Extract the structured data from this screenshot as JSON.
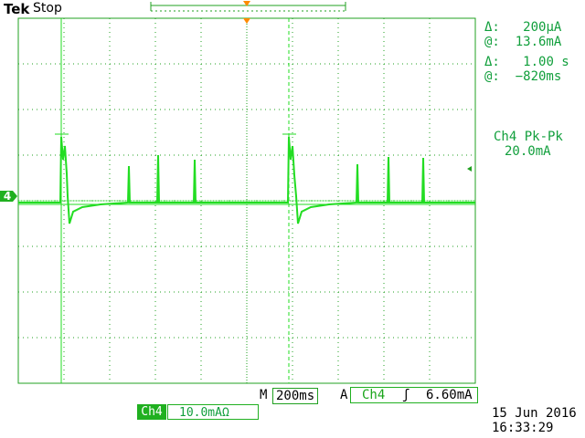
{
  "header": {
    "brand": "Tek",
    "run_state": "Stop"
  },
  "cursor_readout": {
    "delta_amp_symbol": "Δ:",
    "delta_amp": "200µA",
    "at_amp_symbol": "@:",
    "at_amp": "13.6mA",
    "delta_time_symbol": "Δ:",
    "delta_time": "1.00 s",
    "at_time_symbol": "@:",
    "at_time": "−820ms"
  },
  "measurement": {
    "label": "Ch4 Pk-Pk",
    "value": "20.0mA"
  },
  "channel": {
    "marker": "4",
    "name": "Ch4",
    "scale": "10.0mAΩ"
  },
  "timebase": {
    "prefix": "M",
    "value": "200ms"
  },
  "trigger": {
    "prefix": "A",
    "source": "Ch4",
    "slope_symbol": "ʃ",
    "level": "6.60mA"
  },
  "datetime": {
    "date": "15 Jun  2016",
    "time": "16:33:29"
  },
  "colors": {
    "trace": "#22dd22",
    "grid": "#20a020",
    "text_green": "#119f3c"
  }
}
